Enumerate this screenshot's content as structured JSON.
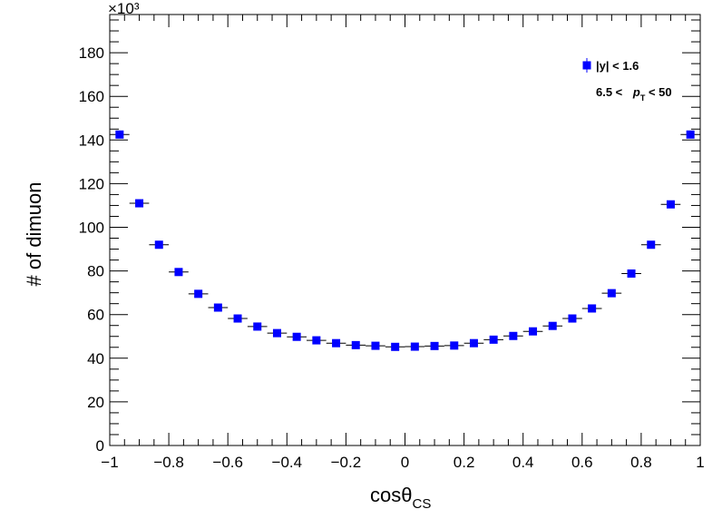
{
  "chart_data": {
    "type": "scatter",
    "xlabel_main": "cosθ",
    "xlabel_sub": "CS",
    "ylabel": "# of dimuon",
    "y_multiplier": "×10³",
    "xlim": [
      -1,
      1
    ],
    "ylim": [
      0,
      197.5
    ],
    "x_ticks": [
      -1,
      -0.8,
      -0.6,
      -0.4,
      -0.2,
      0,
      0.2,
      0.4,
      0.6,
      0.8,
      1
    ],
    "x_tick_labels": [
      "−1",
      "−0.8",
      "−0.6",
      "−0.4",
      "−0.2",
      "0",
      "0.2",
      "0.4",
      "0.6",
      "0.8",
      "1"
    ],
    "y_ticks": [
      0,
      20,
      40,
      60,
      80,
      100,
      120,
      140,
      160,
      180
    ],
    "y_tick_labels": [
      "0",
      "20",
      "40",
      "60",
      "80",
      "100",
      "120",
      "140",
      "160",
      "180"
    ],
    "grid": false,
    "legend_position": "top-right",
    "legend": {
      "entry": "|y| < 1.6",
      "line2_prefix": "6.5 < ",
      "line2_var": "p",
      "line2_sub": "T",
      "line2_suffix": " < 50"
    },
    "marker_color": "#0000ff",
    "bin_half_width": 0.0333,
    "series": [
      {
        "x": [
          -0.9667,
          -0.9,
          -0.8333,
          -0.7667,
          -0.7,
          -0.6333,
          -0.5667,
          -0.5,
          -0.4333,
          -0.3667,
          -0.3,
          -0.2333,
          -0.1667,
          -0.1,
          -0.0333,
          0.0333,
          0.1,
          0.1667,
          0.2333,
          0.3,
          0.3667,
          0.4333,
          0.5,
          0.5667,
          0.6333,
          0.7,
          0.7667,
          0.8333,
          0.9,
          0.9667
        ],
        "y": [
          142.5,
          111.0,
          92.0,
          79.5,
          69.5,
          63.2,
          58.2,
          54.5,
          51.5,
          49.8,
          48.2,
          46.9,
          46.0,
          45.7,
          45.2,
          45.3,
          45.6,
          45.8,
          46.9,
          48.5,
          50.2,
          52.3,
          54.8,
          58.2,
          62.8,
          69.8,
          78.8,
          92.0,
          110.5,
          142.5
        ]
      }
    ]
  }
}
